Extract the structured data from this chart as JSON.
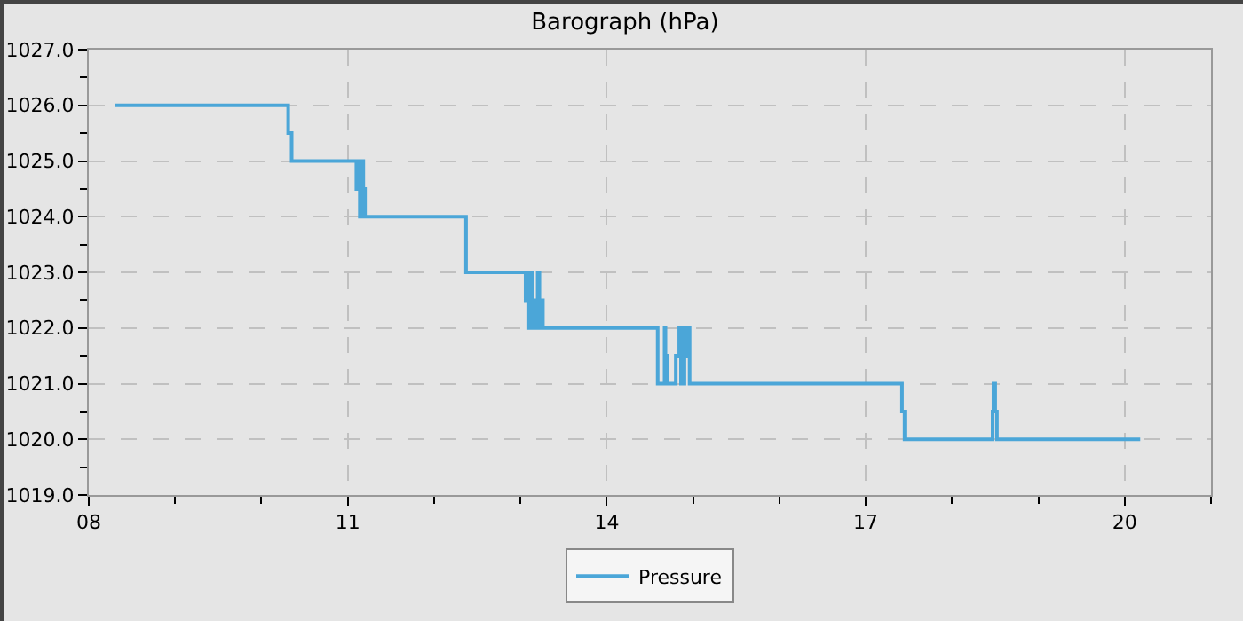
{
  "chart_data": {
    "type": "step",
    "title": "Barograph (hPa)",
    "x": [
      8.3,
      10.31,
      10.35,
      11.1,
      11.12,
      11.14,
      11.16,
      11.18,
      11.2,
      12.37,
      13.06,
      13.08,
      13.1,
      13.12,
      13.14,
      13.16,
      13.2,
      13.22,
      13.24,
      13.26,
      14.59,
      14.67,
      14.68,
      14.7,
      14.8,
      14.84,
      14.86,
      14.9,
      14.92,
      14.94,
      14.96,
      17.42,
      17.45,
      18.47,
      18.48,
      18.5,
      18.52,
      20.18
    ],
    "series": [
      {
        "name": "Pressure",
        "color": "#4ba6d8",
        "values": [
          1026,
          1025.5,
          1025,
          1024.5,
          1025,
          1024,
          1025,
          1024.5,
          1024,
          1023,
          1022.5,
          1023,
          1022,
          1023,
          1022.5,
          1022,
          1023,
          1022,
          1022.5,
          1022,
          1021,
          1022,
          1021.5,
          1021,
          1021.5,
          1022,
          1021,
          1022,
          1021.5,
          1022,
          1021,
          1020.5,
          1020,
          1020.5,
          1021,
          1020.5,
          1020,
          1020
        ]
      }
    ],
    "xlim": [
      8,
      21
    ],
    "xticks": [
      {
        "value": 8,
        "label": "08"
      },
      11,
      14,
      17,
      20
    ],
    "ylim": [
      1019,
      1027
    ],
    "yticks": [
      {
        "value": 1019,
        "label": "1019.0"
      },
      {
        "value": 1020,
        "label": "1020.0"
      },
      {
        "value": 1021,
        "label": "1021.0"
      },
      {
        "value": 1022,
        "label": "1022.0"
      },
      {
        "value": 1023,
        "label": "1023.0"
      },
      {
        "value": 1024,
        "label": "1024.0"
      },
      {
        "value": 1025,
        "label": "1025.0"
      },
      {
        "value": 1026,
        "label": "1026.0"
      },
      {
        "value": 1027,
        "label": "1027.0"
      }
    ],
    "grid": true,
    "legend": "bottom",
    "line_style": "solid",
    "marker": "none"
  }
}
